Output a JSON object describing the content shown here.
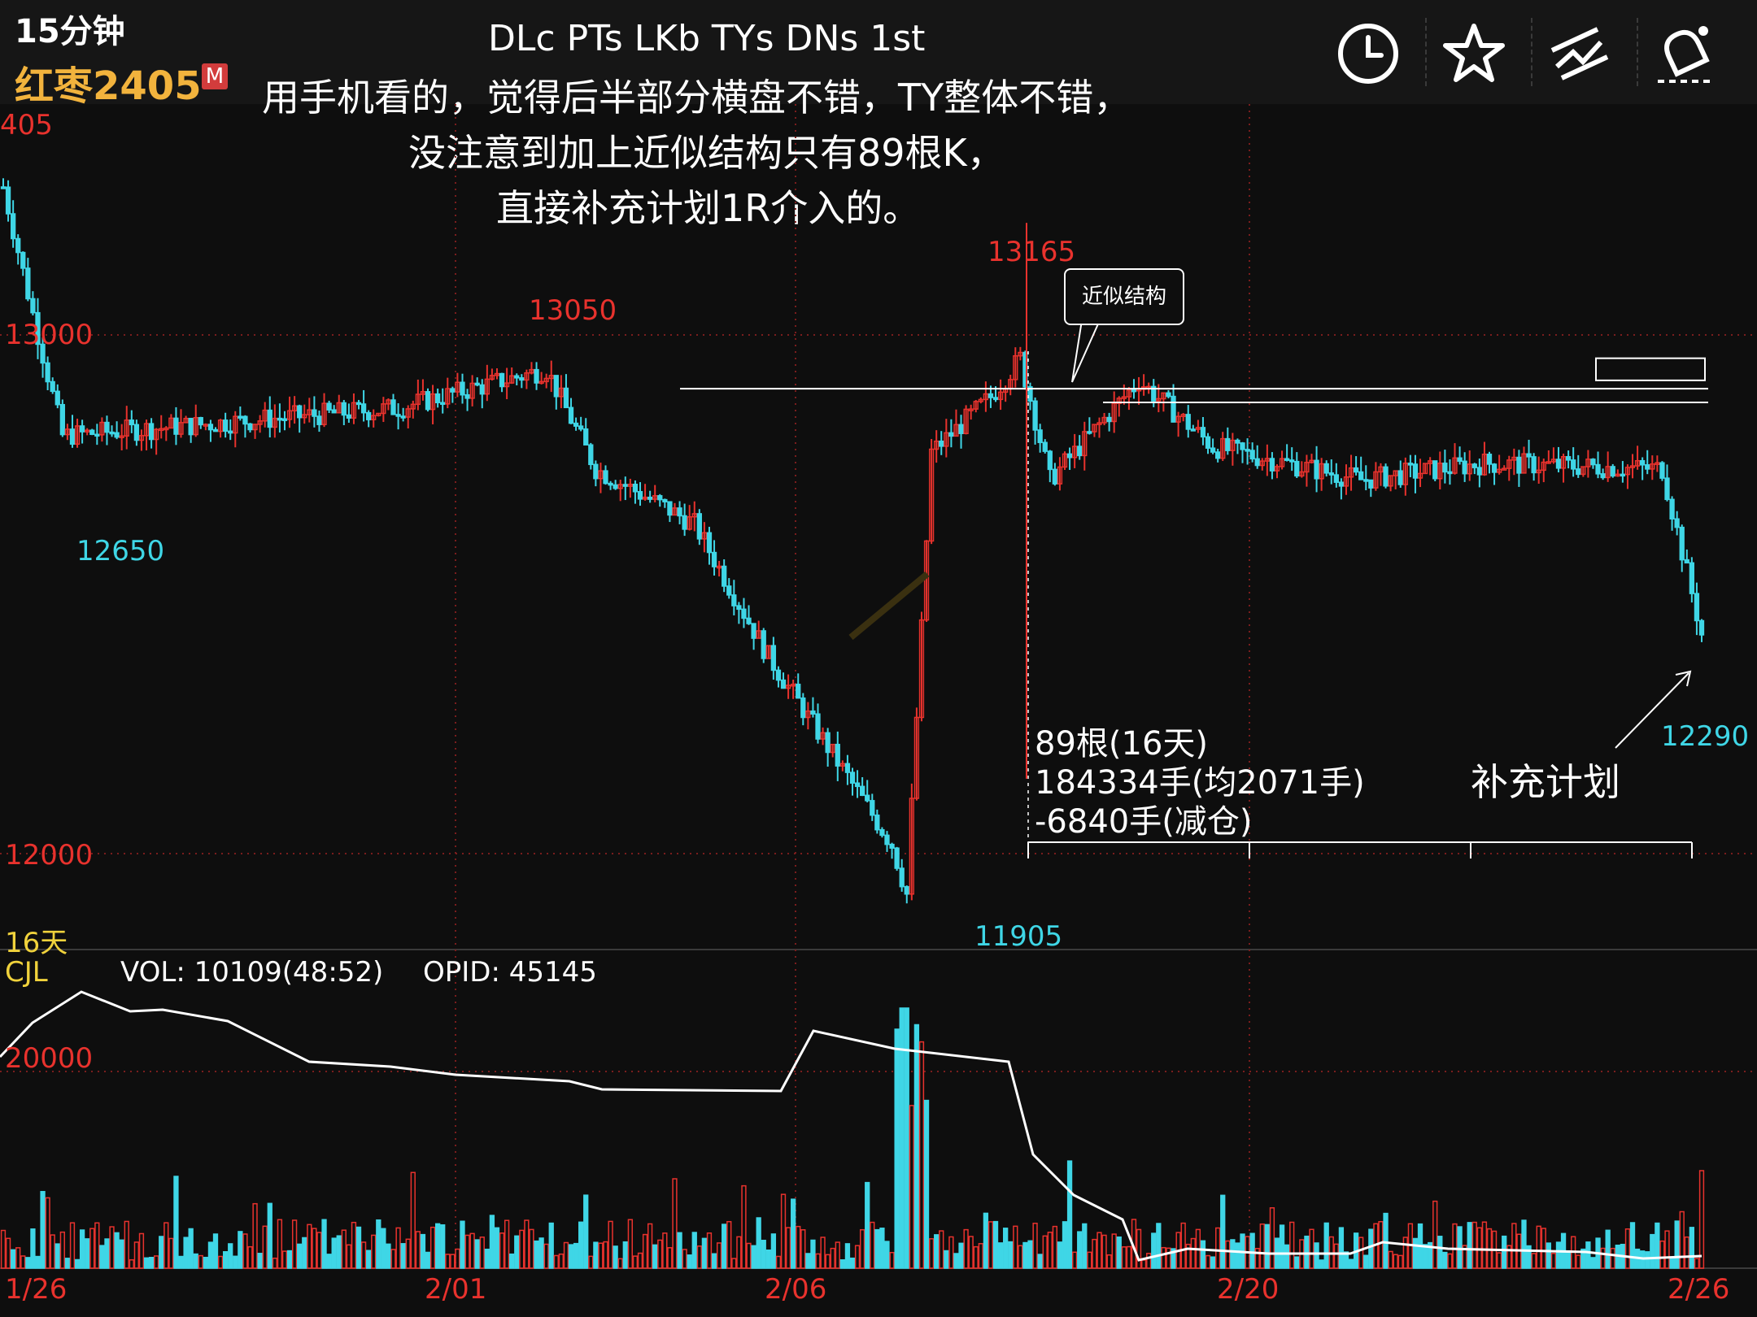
{
  "header": {
    "timeframe": "15分钟",
    "symbol": "红枣2405",
    "badge": "M",
    "title": "DLc PTs LKb TYs DNs 1st",
    "note_lines": [
      "用手机看的，觉得后半部分横盘不错，TY整体不错，",
      "没注意到加上近似结构只有89根K，",
      "直接补充计划1R介入的。"
    ],
    "icons": [
      "clock-icon",
      "star-icon",
      "draw-tool-icon",
      "alert-bell-icon"
    ]
  },
  "colors": {
    "up": "#e8322d",
    "down": "#3fd6e6",
    "price_label": "#e8322d",
    "low_label": "#3fd6e6",
    "accent_yellow": "#f0d23c",
    "background": "#0e0e0e"
  },
  "chart_data": [
    {
      "type": "candlestick",
      "title": "红枣2405 15分钟",
      "y_axis_labels": [
        "405",
        "13000",
        "12000"
      ],
      "ylim": [
        11850,
        13380
      ],
      "x_axis_labels": [
        "1/26",
        "2/01",
        "2/06",
        "2/20",
        "2/26"
      ],
      "annotations": {
        "highs": [
          {
            "label": "13050",
            "value": 13050
          },
          {
            "label": "13165",
            "value": 13165
          }
        ],
        "lows": [
          {
            "label": "12650",
            "value": 12650
          },
          {
            "label": "11905",
            "value": 11905
          },
          {
            "label": "12290",
            "value": 12290
          }
        ],
        "callout": "近似结构",
        "plan_label": "补充计划",
        "stats": [
          "89根(16天)",
          "184334手(均2071手)",
          "-6840手(减仓)"
        ],
        "span_label": "16天",
        "support_lines": [
          12865,
          12840
        ],
        "range_box": [
          12880,
          12920
        ]
      }
    },
    {
      "type": "bar",
      "title": "CJL",
      "indicator_text": "VOL: 10109(48:52)",
      "oi_text": "OPID: 45145",
      "y_axis_labels": [
        "20000"
      ],
      "x_axis_labels": [
        "1/26",
        "2/01",
        "2/06",
        "2/20",
        "2/26"
      ]
    }
  ]
}
